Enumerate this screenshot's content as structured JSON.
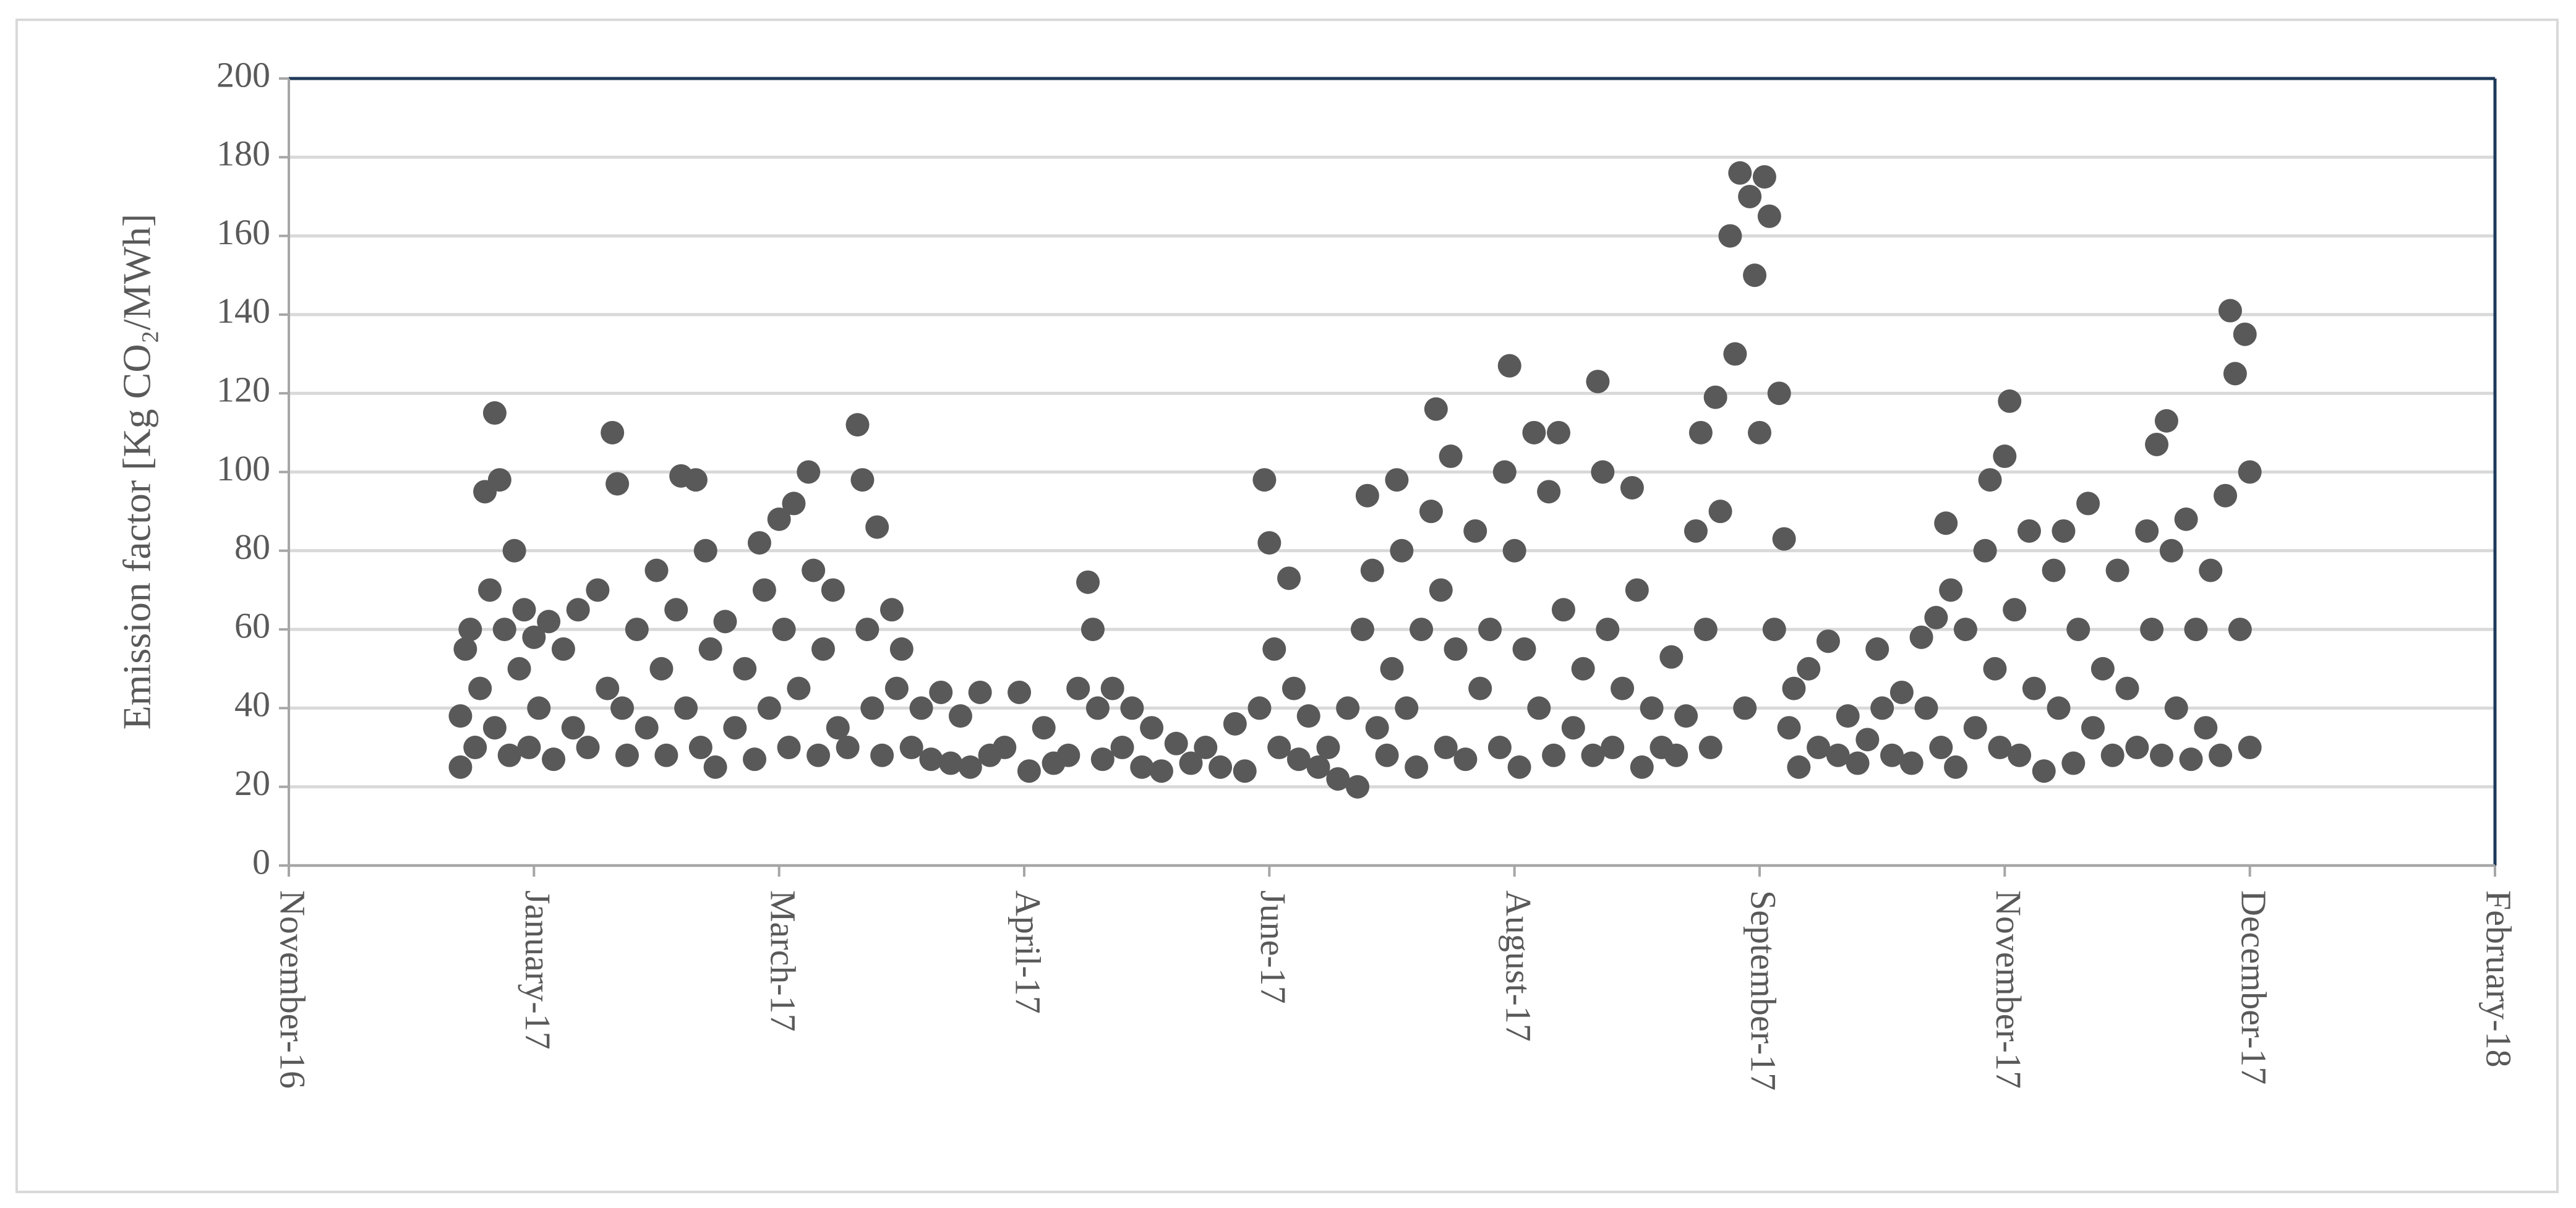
{
  "chart_data": {
    "type": "scatter",
    "y_label": "Emission factor [Kg CO₂/MWh]",
    "color": "#595959",
    "grid": true,
    "xlim": [
      42699,
      43149
    ],
    "xticks": [
      {
        "value": 42699,
        "label": "November-16"
      },
      {
        "value": 42749,
        "label": "January-17"
      },
      {
        "value": 42799,
        "label": "March-17"
      },
      {
        "value": 42849,
        "label": "April-17"
      },
      {
        "value": 42899,
        "label": "June-17"
      },
      {
        "value": 42949,
        "label": "August-17"
      },
      {
        "value": 42999,
        "label": "September-17"
      },
      {
        "value": 43049,
        "label": "November-17"
      },
      {
        "value": 43099,
        "label": "December-17"
      },
      {
        "value": 43149,
        "label": "February-18"
      }
    ],
    "ylim": [
      0,
      200
    ],
    "yticks": [
      0,
      20,
      40,
      60,
      80,
      100,
      120,
      140,
      160,
      180,
      200
    ],
    "x": [
      42734,
      42734,
      42735,
      42736,
      42737,
      42738,
      42739,
      42740,
      42741,
      42741,
      42742,
      42743,
      42744,
      42745,
      42746,
      42747,
      42748,
      42749,
      42750,
      42752,
      42753,
      42755,
      42757,
      42758,
      42760,
      42762,
      42764,
      42765,
      42766,
      42767,
      42768,
      42770,
      42772,
      42774,
      42775,
      42776,
      42778,
      42779,
      42780,
      42782,
      42783,
      42784,
      42785,
      42786,
      42788,
      42790,
      42792,
      42794,
      42795,
      42796,
      42797,
      42799,
      42800,
      42801,
      42802,
      42803,
      42805,
      42806,
      42807,
      42808,
      42810,
      42811,
      42813,
      42815,
      42816,
      42817,
      42818,
      42819,
      42820,
      42822,
      42823,
      42824,
      42826,
      42828,
      42830,
      42832,
      42834,
      42836,
      42838,
      42840,
      42842,
      42845,
      42848,
      42850,
      42853,
      42855,
      42858,
      42860,
      42862,
      42863,
      42864,
      42865,
      42867,
      42869,
      42871,
      42873,
      42875,
      42877,
      42880,
      42883,
      42886,
      42889,
      42892,
      42894,
      42897,
      42898,
      42899,
      42900,
      42901,
      42903,
      42904,
      42905,
      42907,
      42909,
      42911,
      42913,
      42915,
      42917,
      42918,
      42919,
      42920,
      42921,
      42923,
      42924,
      42925,
      42926,
      42927,
      42929,
      42930,
      42932,
      42933,
      42934,
      42935,
      42936,
      42937,
      42939,
      42941,
      42942,
      42944,
      42946,
      42947,
      42948,
      42949,
      42950,
      42951,
      42953,
      42954,
      42956,
      42957,
      42958,
      42959,
      42961,
      42963,
      42965,
      42966,
      42967,
      42968,
      42969,
      42971,
      42973,
      42974,
      42975,
      42977,
      42979,
      42981,
      42982,
      42984,
      42986,
      42987,
      42988,
      42989,
      42990,
      42991,
      42993,
      42994,
      42995,
      42996,
      42997,
      42998,
      42999,
      43000,
      43001,
      43002,
      43003,
      43004,
      43005,
      43006,
      43007,
      43009,
      43011,
      43013,
      43015,
      43017,
      43019,
      43021,
      43023,
      43024,
      43026,
      43028,
      43030,
      43032,
      43033,
      43035,
      43036,
      43037,
      43038,
      43039,
      43041,
      43043,
      43045,
      43046,
      43047,
      43048,
      43049,
      43050,
      43051,
      43052,
      43054,
      43055,
      43057,
      43059,
      43060,
      43061,
      43063,
      43064,
      43066,
      43067,
      43069,
      43071,
      43072,
      43074,
      43076,
      43078,
      43079,
      43080,
      43081,
      43082,
      43083,
      43084,
      43086,
      43087,
      43088,
      43090,
      43091,
      43093,
      43094,
      43095,
      43096,
      43097,
      43098,
      43099,
      43099
    ],
    "values": [
      25,
      38,
      55,
      60,
      30,
      45,
      95,
      70,
      115,
      35,
      98,
      60,
      28,
      80,
      50,
      65,
      30,
      58,
      40,
      62,
      27,
      55,
      35,
      65,
      30,
      70,
      45,
      110,
      97,
      40,
      28,
      60,
      35,
      75,
      50,
      28,
      65,
      99,
      40,
      98,
      30,
      80,
      55,
      25,
      62,
      35,
      50,
      27,
      82,
      70,
      40,
      88,
      60,
      30,
      92,
      45,
      100,
      75,
      28,
      55,
      70,
      35,
      30,
      112,
      98,
      60,
      40,
      86,
      28,
      65,
      45,
      55,
      30,
      40,
      27,
      44,
      26,
      38,
      25,
      44,
      28,
      30,
      44,
      24,
      35,
      26,
      28,
      45,
      72,
      60,
      40,
      27,
      45,
      30,
      40,
      25,
      35,
      24,
      31,
      26,
      30,
      25,
      36,
      24,
      40,
      98,
      82,
      55,
      30,
      73,
      45,
      27,
      38,
      25,
      30,
      22,
      40,
      20,
      60,
      94,
      75,
      35,
      28,
      50,
      98,
      80,
      40,
      25,
      60,
      90,
      116,
      70,
      30,
      104,
      55,
      27,
      85,
      45,
      60,
      30,
      100,
      127,
      80,
      25,
      55,
      110,
      40,
      95,
      28,
      110,
      65,
      35,
      50,
      28,
      123,
      100,
      60,
      30,
      45,
      96,
      70,
      25,
      40,
      30,
      53,
      28,
      38,
      85,
      110,
      60,
      30,
      119,
      90,
      160,
      130,
      176,
      40,
      170,
      150,
      110,
      175,
      165,
      60,
      120,
      83,
      35,
      45,
      25,
      50,
      30,
      57,
      28,
      38,
      26,
      32,
      55,
      40,
      28,
      44,
      26,
      58,
      40,
      63,
      30,
      87,
      70,
      25,
      60,
      35,
      80,
      98,
      50,
      30,
      104,
      118,
      65,
      28,
      85,
      45,
      24,
      75,
      40,
      85,
      26,
      60,
      92,
      35,
      50,
      28,
      75,
      45,
      30,
      85,
      60,
      107,
      28,
      113,
      80,
      40,
      88,
      27,
      60,
      35,
      75,
      28,
      94,
      141,
      125,
      60,
      135,
      100,
      30
    ]
  }
}
